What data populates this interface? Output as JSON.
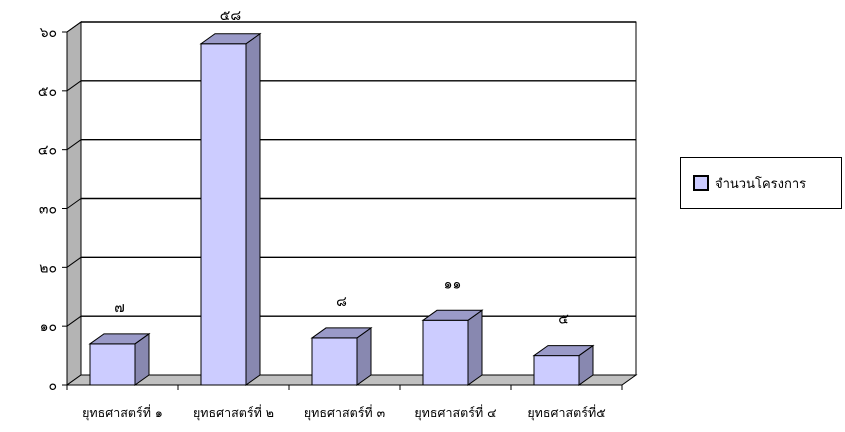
{
  "chart_data": {
    "type": "bar",
    "categories": [
      "ยุทธศาสตร์ที่ ๑",
      "ยุทธศาสตร์ที่ ๒",
      "ยุทธศาสตร์ที่ ๓",
      "ยุทธศาสตร์ที่ ๔",
      "ยุทธศาสตร์ที่๕"
    ],
    "series": [
      {
        "name": "จำนวนโครงการ",
        "values": [
          7,
          58,
          8,
          11,
          5
        ],
        "labels": [
          "๗",
          "๕๘",
          "๘",
          "๑๑",
          "๕"
        ],
        "color": "#ccccff"
      }
    ],
    "ylim": [
      0,
      60
    ],
    "yticks": [
      0,
      10,
      20,
      30,
      40,
      50,
      60
    ],
    "ytick_labels": [
      "๐",
      "๑๐",
      "๒๐",
      "๓๐",
      "๔๐",
      "๕๐",
      "๖๐"
    ],
    "grid": true,
    "legend_position": "right",
    "style": "3d-bar",
    "colors": {
      "bar_front": "#ccccff",
      "bar_side": "#8888b0",
      "bar_top": "#9a9ac8",
      "wall": "#b4b4b4",
      "floor": "#c0c0c0"
    }
  }
}
